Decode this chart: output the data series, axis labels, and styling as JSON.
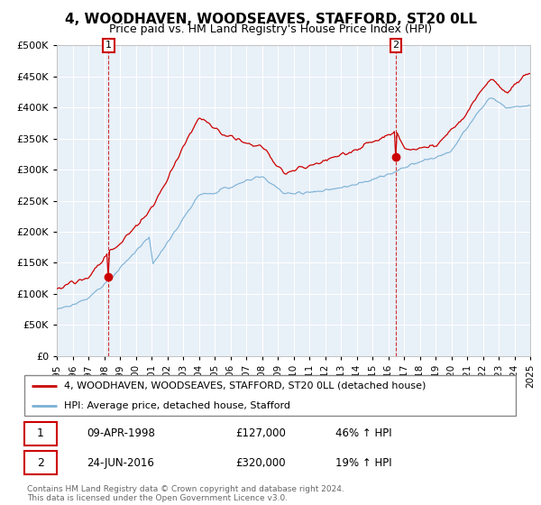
{
  "title": "4, WOODHAVEN, WOODSEAVES, STAFFORD, ST20 0LL",
  "subtitle": "Price paid vs. HM Land Registry's House Price Index (HPI)",
  "legend_line1": "4, WOODHAVEN, WOODSEAVES, STAFFORD, ST20 0LL (detached house)",
  "legend_line2": "HPI: Average price, detached house, Stafford",
  "annotation1_date": "09-APR-1998",
  "annotation1_price": "£127,000",
  "annotation1_hpi": "46% ↑ HPI",
  "annotation2_date": "24-JUN-2016",
  "annotation2_price": "£320,000",
  "annotation2_hpi": "19% ↑ HPI",
  "footnote": "Contains HM Land Registry data © Crown copyright and database right 2024.\nThis data is licensed under the Open Government Licence v3.0.",
  "price_color": "#cc0000",
  "hpi_color": "#7ab0d4",
  "bg_color": "#e8f0f8",
  "ylim": [
    0,
    500000
  ],
  "yticks": [
    0,
    50000,
    100000,
    150000,
    200000,
    250000,
    300000,
    350000,
    400000,
    450000,
    500000
  ],
  "sale1_x": 1998.27,
  "sale1_y": 127000,
  "sale2_x": 2016.48,
  "sale2_y": 320000,
  "xmin": 1995.0,
  "xmax": 2025.0
}
